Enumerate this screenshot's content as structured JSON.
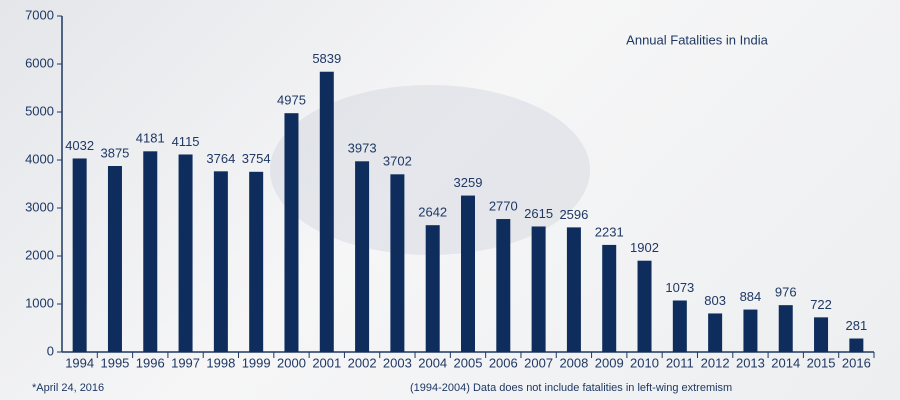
{
  "chart_data": {
    "type": "bar",
    "title": "Annual Fatalities in India",
    "categories": [
      "1994",
      "1995",
      "1996",
      "1997",
      "1998",
      "1999",
      "2000",
      "2001",
      "2002",
      "2003",
      "2004",
      "2005",
      "2006",
      "2007",
      "2008",
      "2009",
      "2010",
      "2011",
      "2012",
      "2013",
      "2014",
      "2015",
      "2016"
    ],
    "values": [
      4032,
      3875,
      4181,
      4115,
      3764,
      3754,
      4975,
      5839,
      3973,
      3702,
      2642,
      3259,
      2770,
      2615,
      2596,
      2231,
      1902,
      1073,
      803,
      884,
      976,
      722,
      281
    ],
    "color": "#0e2d5c",
    "ylim": [
      0,
      7000
    ],
    "yticks": [
      0,
      1000,
      2000,
      3000,
      4000,
      5000,
      6000,
      7000
    ],
    "annotations": [
      "*April 24, 2016",
      "(1994-2004) Data does not include fatalities in left-wing extremism"
    ]
  }
}
